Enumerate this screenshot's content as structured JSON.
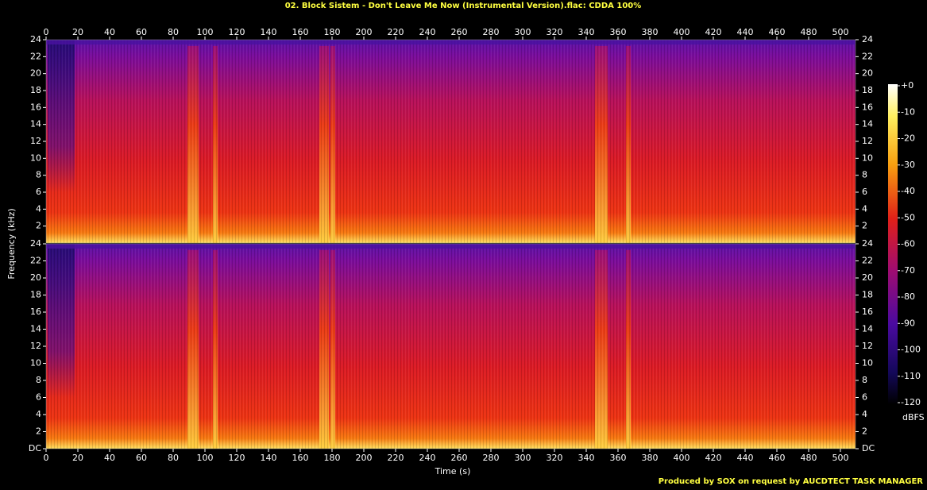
{
  "chart_data": {
    "type": "spectrogram",
    "title": "02. Block Sistem - Don't Leave Me Now (Instrumental Version).flac: CDDA 100%",
    "xlabel": "Time (s)",
    "ylabel": "Frequency (kHz)",
    "xlim": [
      0,
      509.5
    ],
    "xticks": [
      0,
      20,
      40,
      60,
      80,
      100,
      120,
      140,
      160,
      180,
      200,
      220,
      240,
      260,
      280,
      300,
      320,
      340,
      360,
      380,
      400,
      420,
      440,
      460,
      480,
      500
    ],
    "panels": [
      {
        "ylim": [
          0,
          24
        ],
        "yticks": [
          2,
          4,
          6,
          8,
          10,
          12,
          14,
          16,
          18,
          20,
          22,
          24
        ]
      },
      {
        "ylim": [
          0,
          24
        ],
        "yticks": [
          {
            "value": 0,
            "label": "DC"
          },
          2,
          4,
          6,
          8,
          10,
          12,
          14,
          16,
          18,
          20,
          22,
          24
        ]
      }
    ],
    "colorbar_label": "dBFS",
    "clim": [
      -120,
      0
    ],
    "cticks": [
      {
        "value": 0,
        "label": "+0"
      },
      -10,
      -20,
      -30,
      -40,
      -50,
      -60,
      -70,
      -80,
      -90,
      -100,
      -110,
      -120
    ],
    "credit": "Produced by SOX on request by AUCDTECT TASK MANAGER"
  }
}
